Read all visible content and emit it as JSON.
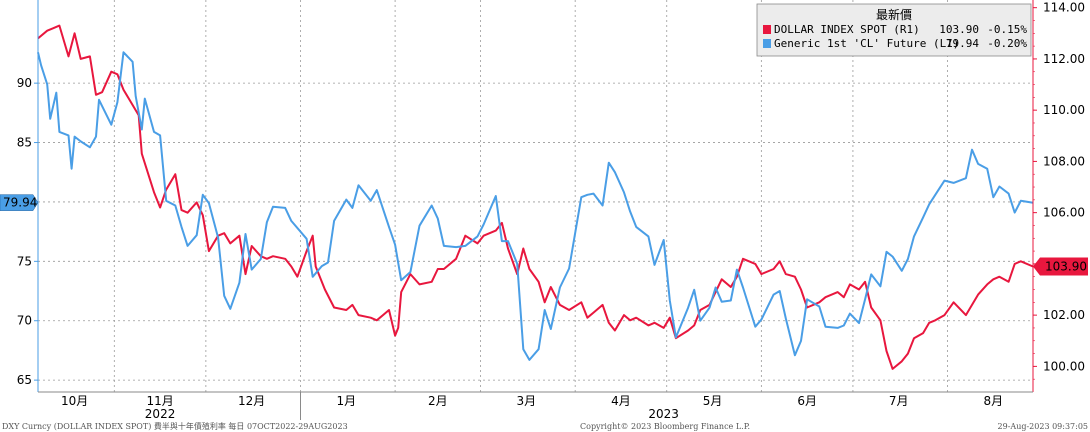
{
  "chart_data": {
    "type": "line",
    "legend": {
      "title": "最新價",
      "placement": "top-right",
      "entries": [
        {
          "label": "DOLLAR INDEX SPOT  (R1)",
          "value": "103.90",
          "change": "-0.15%"
        },
        {
          "label": "Generic 1st 'CL' Future  (L1)",
          "value": "79.94",
          "change": "-0.20%"
        }
      ]
    },
    "x_months": [
      "10月",
      "11月",
      "12月",
      "1月",
      "2月",
      "3月",
      "4月",
      "5月",
      "6月",
      "7月",
      "8月"
    ],
    "x_years": [
      "2022",
      "2023"
    ],
    "x_range": [
      "2022-10-07",
      "2023-08-29"
    ],
    "left_axis": {
      "ylim": [
        64,
        97
      ],
      "ticks": [
        "65",
        "70",
        "75",
        "80",
        "85",
        "90"
      ],
      "last_label": "79.94"
    },
    "right_axis": {
      "ylim": [
        99,
        114.3
      ],
      "ticks": [
        "100.00",
        "102.00",
        "104.00",
        "106.00",
        "108.00",
        "110.00",
        "112.00",
        "114.00"
      ],
      "last_label": "103.90"
    },
    "grid": true,
    "series": [
      {
        "name": "DOLLAR INDEX SPOT  (R1)",
        "axis": "right",
        "color": "#e8173e",
        "points": [
          [
            "2022-10-07",
            112.8
          ],
          [
            "2022-10-10",
            113.1
          ],
          [
            "2022-10-12",
            113.2
          ],
          [
            "2022-10-14",
            113.3
          ],
          [
            "2022-10-17",
            112.1
          ],
          [
            "2022-10-19",
            113.0
          ],
          [
            "2022-10-21",
            112.0
          ],
          [
            "2022-10-24",
            112.1
          ],
          [
            "2022-10-26",
            110.6
          ],
          [
            "2022-10-28",
            110.7
          ],
          [
            "2022-10-31",
            111.5
          ],
          [
            "2022-11-02",
            111.4
          ],
          [
            "2022-11-04",
            110.8
          ],
          [
            "2022-11-07",
            110.2
          ],
          [
            "2022-11-09",
            109.8
          ],
          [
            "2022-11-10",
            108.3
          ],
          [
            "2022-11-14",
            106.8
          ],
          [
            "2022-11-16",
            106.2
          ],
          [
            "2022-11-18",
            106.9
          ],
          [
            "2022-11-21",
            107.5
          ],
          [
            "2022-11-23",
            106.1
          ],
          [
            "2022-11-25",
            106.0
          ],
          [
            "2022-11-28",
            106.4
          ],
          [
            "2022-11-30",
            105.9
          ],
          [
            "2022-12-02",
            104.5
          ],
          [
            "2022-12-05",
            105.1
          ],
          [
            "2022-12-07",
            105.2
          ],
          [
            "2022-12-09",
            104.8
          ],
          [
            "2022-12-12",
            105.1
          ],
          [
            "2022-12-14",
            103.6
          ],
          [
            "2022-12-16",
            104.7
          ],
          [
            "2022-12-19",
            104.3
          ],
          [
            "2022-12-21",
            104.2
          ],
          [
            "2022-12-23",
            104.3
          ],
          [
            "2022-12-27",
            104.2
          ],
          [
            "2022-12-29",
            103.9
          ],
          [
            "2022-12-31",
            103.5
          ],
          [
            "2023-01-03",
            104.5
          ],
          [
            "2023-01-05",
            105.1
          ],
          [
            "2023-01-06",
            103.9
          ],
          [
            "2023-01-09",
            103.0
          ],
          [
            "2023-01-12",
            102.3
          ],
          [
            "2023-01-16",
            102.2
          ],
          [
            "2023-01-18",
            102.4
          ],
          [
            "2023-01-20",
            102.0
          ],
          [
            "2023-01-24",
            101.9
          ],
          [
            "2023-01-26",
            101.8
          ],
          [
            "2023-01-30",
            102.2
          ],
          [
            "2023-02-01",
            101.2
          ],
          [
            "2023-02-02",
            101.5
          ],
          [
            "2023-02-03",
            102.9
          ],
          [
            "2023-02-06",
            103.6
          ],
          [
            "2023-02-09",
            103.2
          ],
          [
            "2023-02-13",
            103.3
          ],
          [
            "2023-02-15",
            103.8
          ],
          [
            "2023-02-17",
            103.8
          ],
          [
            "2023-02-21",
            104.2
          ],
          [
            "2023-02-24",
            105.1
          ],
          [
            "2023-02-28",
            104.8
          ],
          [
            "2023-03-02",
            105.1
          ],
          [
            "2023-03-06",
            105.3
          ],
          [
            "2023-03-08",
            105.6
          ],
          [
            "2023-03-10",
            104.6
          ],
          [
            "2023-03-13",
            103.6
          ],
          [
            "2023-03-15",
            104.6
          ],
          [
            "2023-03-17",
            103.8
          ],
          [
            "2023-03-20",
            103.3
          ],
          [
            "2023-03-22",
            102.5
          ],
          [
            "2023-03-24",
            103.1
          ],
          [
            "2023-03-27",
            102.4
          ],
          [
            "2023-03-30",
            102.2
          ],
          [
            "2023-04-03",
            102.5
          ],
          [
            "2023-04-05",
            101.9
          ],
          [
            "2023-04-07",
            102.1
          ],
          [
            "2023-04-10",
            102.4
          ],
          [
            "2023-04-12",
            101.7
          ],
          [
            "2023-04-14",
            101.4
          ],
          [
            "2023-04-17",
            102.0
          ],
          [
            "2023-04-19",
            101.8
          ],
          [
            "2023-04-21",
            101.9
          ],
          [
            "2023-04-25",
            101.6
          ],
          [
            "2023-04-27",
            101.7
          ],
          [
            "2023-04-30",
            101.5
          ],
          [
            "2023-05-02",
            101.9
          ],
          [
            "2023-05-04",
            101.1
          ],
          [
            "2023-05-08",
            101.4
          ],
          [
            "2023-05-10",
            101.6
          ],
          [
            "2023-05-12",
            102.2
          ],
          [
            "2023-05-15",
            102.4
          ],
          [
            "2023-05-17",
            102.9
          ],
          [
            "2023-05-19",
            103.4
          ],
          [
            "2023-05-22",
            103.1
          ],
          [
            "2023-05-24",
            103.5
          ],
          [
            "2023-05-26",
            104.2
          ],
          [
            "2023-05-30",
            104.0
          ],
          [
            "2023-06-01",
            103.6
          ],
          [
            "2023-06-05",
            103.8
          ],
          [
            "2023-06-07",
            104.1
          ],
          [
            "2023-06-09",
            103.6
          ],
          [
            "2023-06-12",
            103.5
          ],
          [
            "2023-06-14",
            103.0
          ],
          [
            "2023-06-16",
            102.3
          ],
          [
            "2023-06-20",
            102.5
          ],
          [
            "2023-06-22",
            102.7
          ],
          [
            "2023-06-26",
            102.9
          ],
          [
            "2023-06-28",
            102.7
          ],
          [
            "2023-06-30",
            103.2
          ],
          [
            "2023-07-03",
            103.0
          ],
          [
            "2023-07-05",
            103.3
          ],
          [
            "2023-07-07",
            102.3
          ],
          [
            "2023-07-10",
            101.8
          ],
          [
            "2023-07-12",
            100.6
          ],
          [
            "2023-07-14",
            99.9
          ],
          [
            "2023-07-17",
            100.2
          ],
          [
            "2023-07-19",
            100.5
          ],
          [
            "2023-07-21",
            101.1
          ],
          [
            "2023-07-24",
            101.3
          ],
          [
            "2023-07-26",
            101.7
          ],
          [
            "2023-07-28",
            101.8
          ],
          [
            "2023-07-31",
            102.0
          ],
          [
            "2023-08-03",
            102.5
          ],
          [
            "2023-08-07",
            102.0
          ],
          [
            "2023-08-09",
            102.4
          ],
          [
            "2023-08-11",
            102.8
          ],
          [
            "2023-08-14",
            103.2
          ],
          [
            "2023-08-16",
            103.4
          ],
          [
            "2023-08-18",
            103.5
          ],
          [
            "2023-08-21",
            103.3
          ],
          [
            "2023-08-23",
            104.0
          ],
          [
            "2023-08-25",
            104.1
          ],
          [
            "2023-08-29",
            103.9
          ]
        ]
      },
      {
        "name": "Generic 1st 'CL' Future  (L1)",
        "axis": "left",
        "color": "#4a9ee6",
        "points": [
          [
            "2022-10-07",
            92.6
          ],
          [
            "2022-10-08",
            91.5
          ],
          [
            "2022-10-10",
            89.9
          ],
          [
            "2022-10-11",
            87.0
          ],
          [
            "2022-10-13",
            89.2
          ],
          [
            "2022-10-14",
            85.9
          ],
          [
            "2022-10-17",
            85.6
          ],
          [
            "2022-10-18",
            82.8
          ],
          [
            "2022-10-19",
            85.5
          ],
          [
            "2022-10-21",
            85.1
          ],
          [
            "2022-10-24",
            84.6
          ],
          [
            "2022-10-26",
            85.5
          ],
          [
            "2022-10-27",
            88.6
          ],
          [
            "2022-10-31",
            86.5
          ],
          [
            "2022-11-02",
            88.4
          ],
          [
            "2022-11-04",
            92.6
          ],
          [
            "2022-11-07",
            91.8
          ],
          [
            "2022-11-08",
            88.9
          ],
          [
            "2022-11-10",
            86.1
          ],
          [
            "2022-11-11",
            88.7
          ],
          [
            "2022-11-14",
            85.9
          ],
          [
            "2022-11-16",
            85.6
          ],
          [
            "2022-11-18",
            80.1
          ],
          [
            "2022-11-21",
            79.7
          ],
          [
            "2022-11-23",
            77.9
          ],
          [
            "2022-11-25",
            76.3
          ],
          [
            "2022-11-28",
            77.2
          ],
          [
            "2022-11-30",
            80.6
          ],
          [
            "2022-12-02",
            79.9
          ],
          [
            "2022-12-05",
            77.0
          ],
          [
            "2022-12-07",
            72.1
          ],
          [
            "2022-12-09",
            71.0
          ],
          [
            "2022-12-12",
            73.2
          ],
          [
            "2022-12-14",
            77.3
          ],
          [
            "2022-12-16",
            74.3
          ],
          [
            "2022-12-19",
            75.2
          ],
          [
            "2022-12-21",
            78.3
          ],
          [
            "2022-12-23",
            79.6
          ],
          [
            "2022-12-27",
            79.5
          ],
          [
            "2022-12-29",
            78.4
          ],
          [
            "2023-01-03",
            76.9
          ],
          [
            "2023-01-05",
            73.7
          ],
          [
            "2023-01-08",
            74.6
          ],
          [
            "2023-01-10",
            74.9
          ],
          [
            "2023-01-12",
            78.4
          ],
          [
            "2023-01-16",
            80.2
          ],
          [
            "2023-01-18",
            79.5
          ],
          [
            "2023-01-20",
            81.4
          ],
          [
            "2023-01-24",
            80.1
          ],
          [
            "2023-01-26",
            81.0
          ],
          [
            "2023-01-30",
            77.9
          ],
          [
            "2023-02-01",
            76.4
          ],
          [
            "2023-02-03",
            73.4
          ],
          [
            "2023-02-06",
            74.1
          ],
          [
            "2023-02-09",
            78.0
          ],
          [
            "2023-02-13",
            79.7
          ],
          [
            "2023-02-15",
            78.6
          ],
          [
            "2023-02-17",
            76.3
          ],
          [
            "2023-02-21",
            76.2
          ],
          [
            "2023-02-24",
            76.3
          ],
          [
            "2023-02-28",
            77.1
          ],
          [
            "2023-03-02",
            78.1
          ],
          [
            "2023-03-06",
            80.5
          ],
          [
            "2023-03-08",
            76.7
          ],
          [
            "2023-03-10",
            76.7
          ],
          [
            "2023-03-13",
            74.8
          ],
          [
            "2023-03-15",
            67.6
          ],
          [
            "2023-03-17",
            66.7
          ],
          [
            "2023-03-20",
            67.6
          ],
          [
            "2023-03-22",
            70.9
          ],
          [
            "2023-03-24",
            69.3
          ],
          [
            "2023-03-27",
            72.8
          ],
          [
            "2023-03-30",
            74.4
          ],
          [
            "2023-04-03",
            80.4
          ],
          [
            "2023-04-05",
            80.6
          ],
          [
            "2023-04-07",
            80.7
          ],
          [
            "2023-04-10",
            79.7
          ],
          [
            "2023-04-12",
            83.3
          ],
          [
            "2023-04-14",
            82.5
          ],
          [
            "2023-04-17",
            80.8
          ],
          [
            "2023-04-19",
            79.2
          ],
          [
            "2023-04-21",
            77.9
          ],
          [
            "2023-04-25",
            77.1
          ],
          [
            "2023-04-27",
            74.7
          ],
          [
            "2023-04-30",
            76.8
          ],
          [
            "2023-05-02",
            71.7
          ],
          [
            "2023-05-04",
            68.6
          ],
          [
            "2023-05-08",
            71.1
          ],
          [
            "2023-05-10",
            72.6
          ],
          [
            "2023-05-12",
            70.0
          ],
          [
            "2023-05-15",
            71.1
          ],
          [
            "2023-05-17",
            72.8
          ],
          [
            "2023-05-19",
            71.6
          ],
          [
            "2023-05-22",
            71.7
          ],
          [
            "2023-05-24",
            74.3
          ],
          [
            "2023-05-26",
            72.8
          ],
          [
            "2023-05-30",
            69.5
          ],
          [
            "2023-06-01",
            70.1
          ],
          [
            "2023-06-05",
            72.2
          ],
          [
            "2023-06-07",
            72.5
          ],
          [
            "2023-06-09",
            70.2
          ],
          [
            "2023-06-12",
            67.1
          ],
          [
            "2023-06-14",
            68.3
          ],
          [
            "2023-06-16",
            71.8
          ],
          [
            "2023-06-20",
            71.2
          ],
          [
            "2023-06-22",
            69.5
          ],
          [
            "2023-06-26",
            69.4
          ],
          [
            "2023-06-28",
            69.6
          ],
          [
            "2023-06-30",
            70.6
          ],
          [
            "2023-07-03",
            69.8
          ],
          [
            "2023-07-05",
            71.8
          ],
          [
            "2023-07-07",
            73.9
          ],
          [
            "2023-07-10",
            72.9
          ],
          [
            "2023-07-12",
            75.8
          ],
          [
            "2023-07-14",
            75.4
          ],
          [
            "2023-07-17",
            74.2
          ],
          [
            "2023-07-19",
            75.2
          ],
          [
            "2023-07-21",
            77.1
          ],
          [
            "2023-07-24",
            78.7
          ],
          [
            "2023-07-26",
            79.8
          ],
          [
            "2023-07-28",
            80.6
          ],
          [
            "2023-07-31",
            81.8
          ],
          [
            "2023-08-03",
            81.6
          ],
          [
            "2023-08-07",
            82.0
          ],
          [
            "2023-08-09",
            84.4
          ],
          [
            "2023-08-11",
            83.2
          ],
          [
            "2023-08-14",
            82.8
          ],
          [
            "2023-08-16",
            80.4
          ],
          [
            "2023-08-18",
            81.3
          ],
          [
            "2023-08-21",
            80.7
          ],
          [
            "2023-08-23",
            79.1
          ],
          [
            "2023-08-25",
            80.1
          ],
          [
            "2023-08-29",
            79.94
          ]
        ]
      }
    ]
  },
  "footer": {
    "left": "DXY Curncy (DOLLAR INDEX SPOT) 費半與十年債殖利率  每日 07OCT2022-29AUG2023",
    "center": "Copyright© 2023 Bloomberg Finance L.P.",
    "right": "29-Aug-2023 09:37:05"
  },
  "colors": {
    "usd": "#e8173e",
    "oil": "#4a9ee6",
    "grid": "#9a9a9a"
  }
}
